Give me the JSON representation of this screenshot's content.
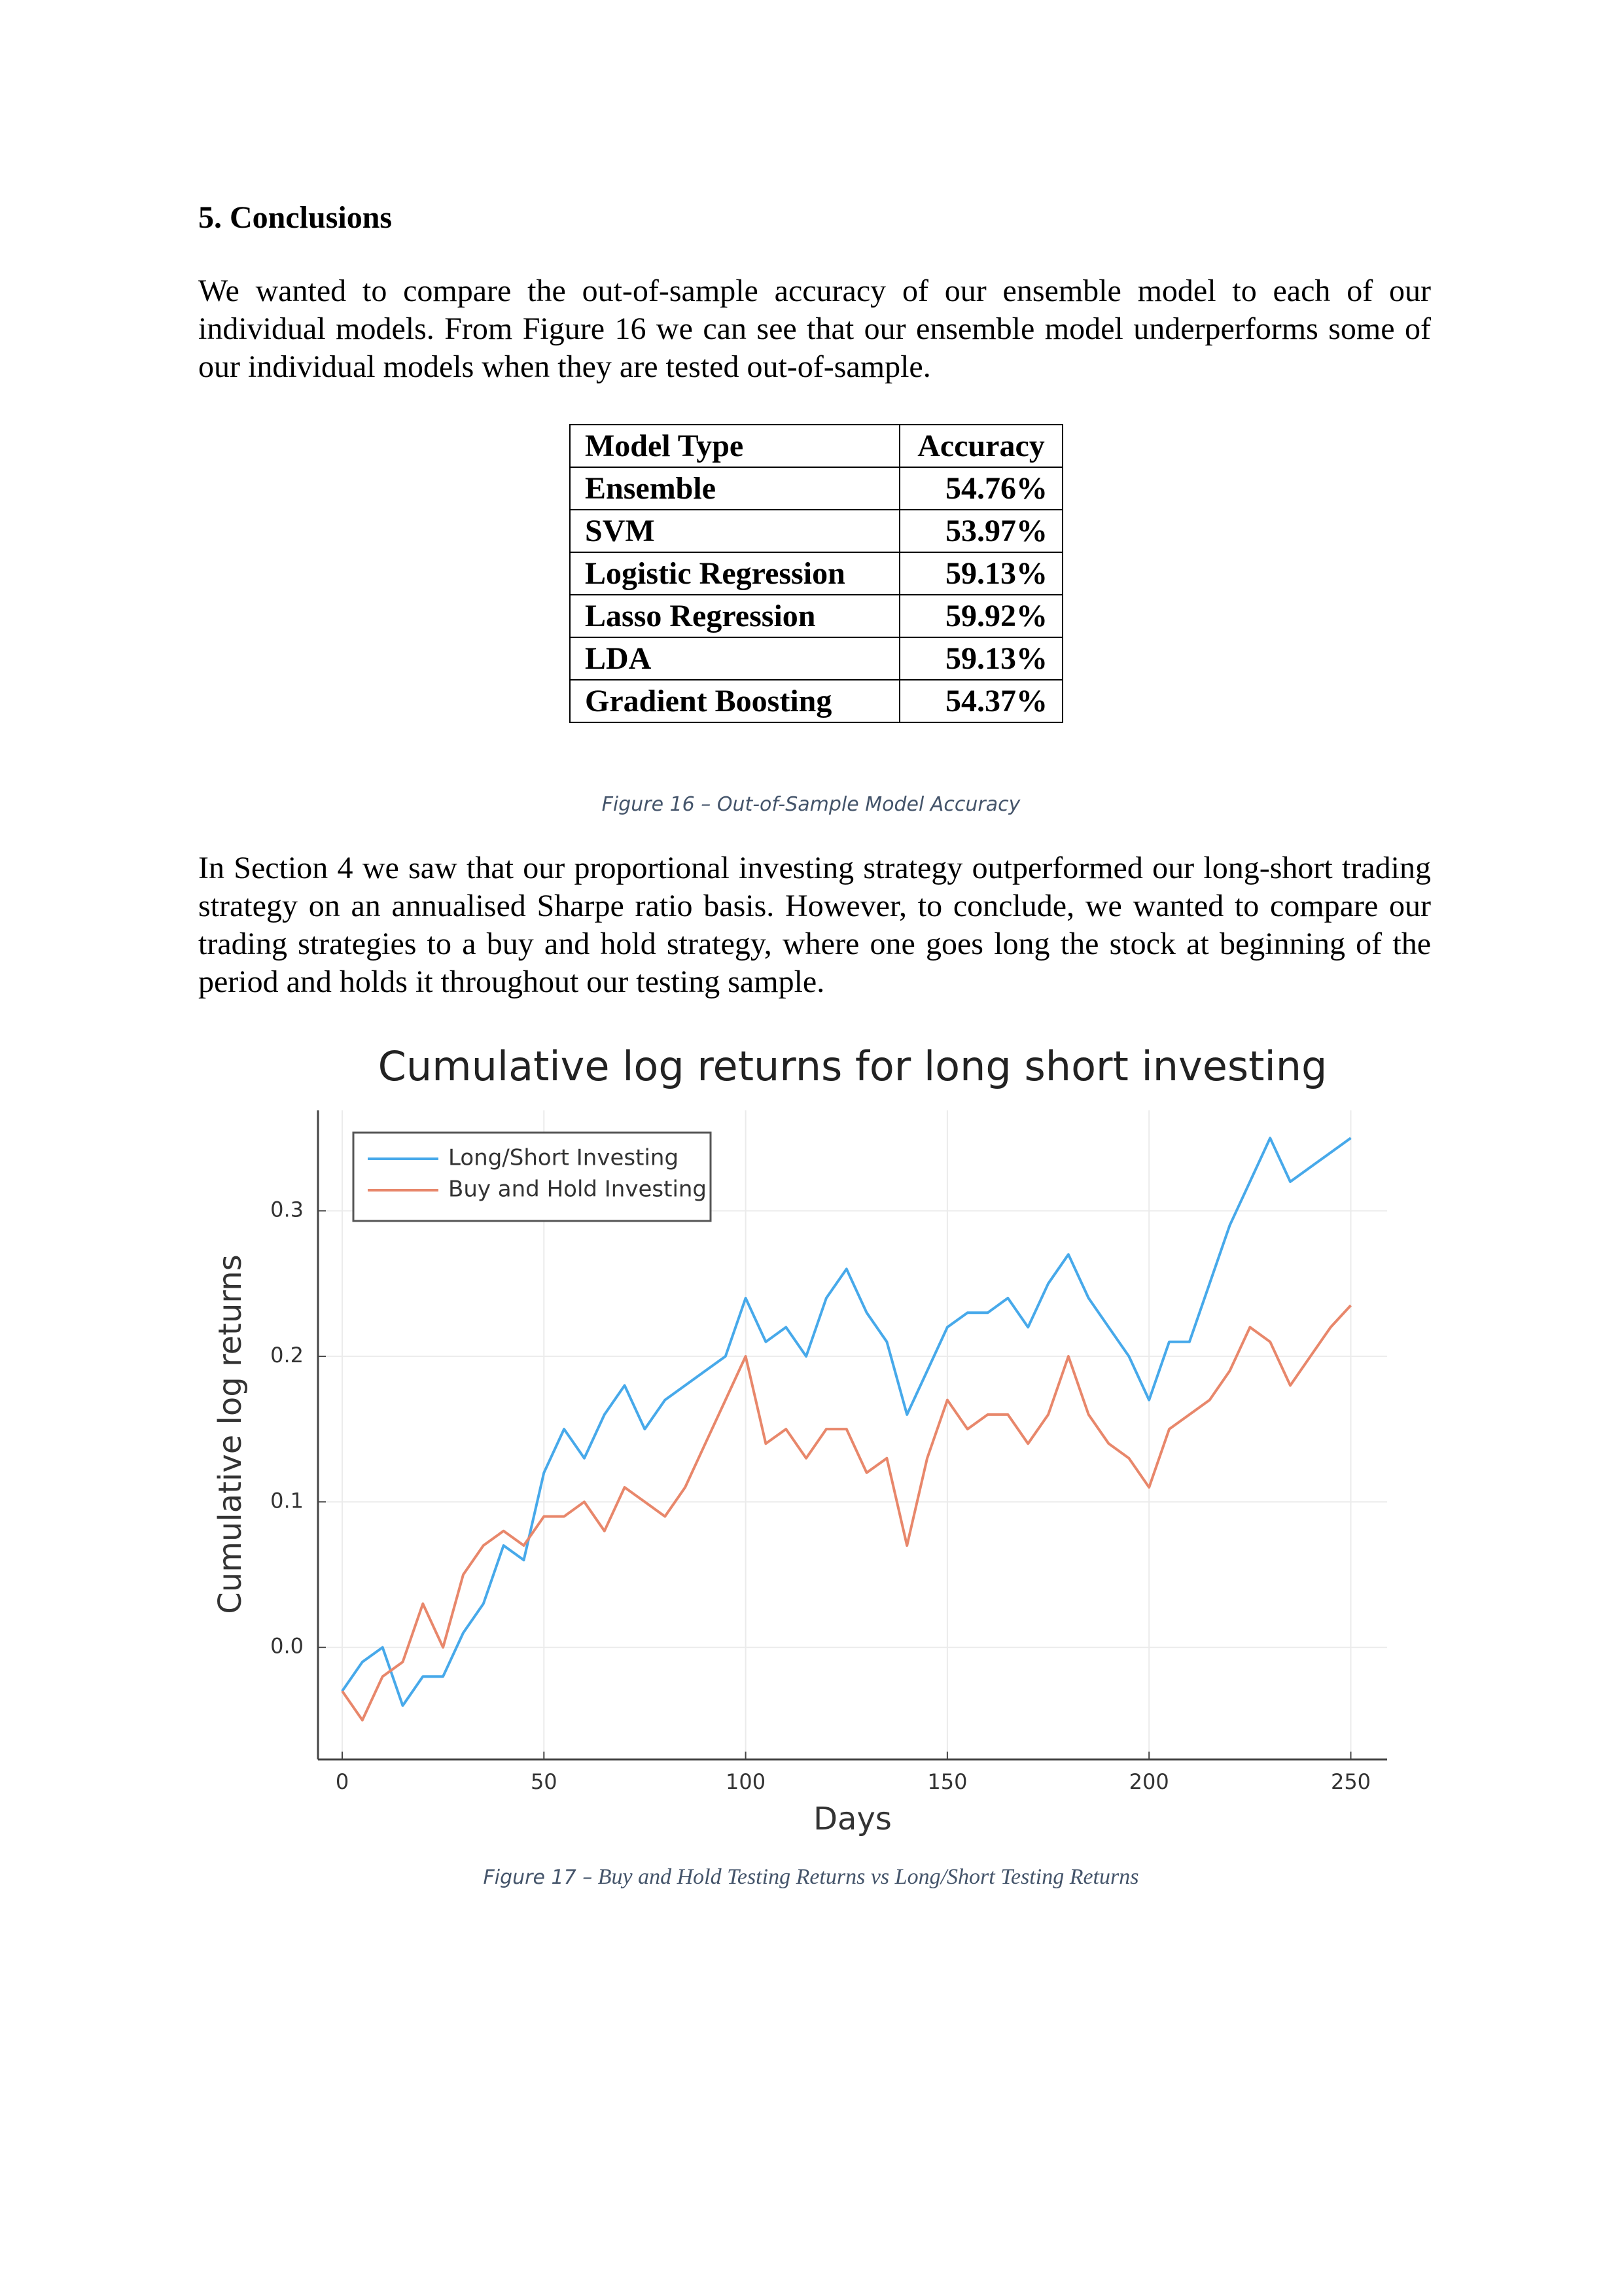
{
  "heading": "5. Conclusions",
  "paragraphs": [
    "We wanted to compare the out-of-sample accuracy of our ensemble model to each of our individual models. From Figure 16 we can see that our ensemble model underperforms some of our individual models when they are tested out-of-sample.",
    "In Section 4 we saw that our proportional investing strategy outperformed our long-short trading strategy on an annualised Sharpe ratio basis. However, to conclude, we wanted to compare our trading strategies to a buy and hold strategy, where one goes long the stock at beginning of the period and holds it throughout our testing sample."
  ],
  "table": {
    "header": [
      "Model Type",
      "Accuracy"
    ],
    "rows": [
      [
        "Ensemble",
        "54.76%"
      ],
      [
        "SVM",
        "53.97%"
      ],
      [
        "Logistic Regression",
        "59.13%"
      ],
      [
        "Lasso Regression",
        "59.92%"
      ],
      [
        "LDA",
        "59.13%"
      ],
      [
        "Gradient Boosting",
        "54.37%"
      ]
    ]
  },
  "figure16_caption": "Figure 16 – Out-of-Sample Model Accuracy",
  "figure17_caption": {
    "label": "Figure 17 –",
    "text": "Buy and Hold Testing Returns vs Long/Short Testing Returns"
  },
  "chart_data": {
    "type": "line",
    "title": "Cumulative log returns for long short investing",
    "x_label": "Days",
    "y_label": "Cumulative log returns",
    "x": [
      0,
      5,
      10,
      15,
      20,
      25,
      30,
      35,
      40,
      45,
      50,
      55,
      60,
      65,
      70,
      75,
      80,
      85,
      90,
      95,
      100,
      105,
      110,
      115,
      120,
      125,
      130,
      135,
      140,
      145,
      150,
      155,
      160,
      165,
      170,
      175,
      180,
      185,
      190,
      195,
      200,
      205,
      210,
      215,
      220,
      225,
      230,
      235,
      240,
      245,
      250
    ],
    "series": [
      {
        "name": "Long/Short Investing",
        "color": "#47a9ea",
        "values": [
          -0.03,
          -0.01,
          0.0,
          -0.04,
          -0.02,
          -0.02,
          0.01,
          0.03,
          0.07,
          0.06,
          0.12,
          0.15,
          0.13,
          0.16,
          0.18,
          0.15,
          0.17,
          0.18,
          0.19,
          0.2,
          0.24,
          0.21,
          0.22,
          0.2,
          0.24,
          0.26,
          0.23,
          0.21,
          0.16,
          0.19,
          0.22,
          0.23,
          0.23,
          0.24,
          0.22,
          0.25,
          0.27,
          0.24,
          0.22,
          0.2,
          0.17,
          0.21,
          0.21,
          0.25,
          0.29,
          0.32,
          0.35,
          0.32,
          0.33,
          0.34,
          0.35
        ]
      },
      {
        "name": "Buy and Hold Investing",
        "color": "#e8876b",
        "values": [
          -0.03,
          -0.05,
          -0.02,
          -0.01,
          0.03,
          0.0,
          0.05,
          0.07,
          0.08,
          0.07,
          0.09,
          0.09,
          0.1,
          0.08,
          0.11,
          0.1,
          0.09,
          0.11,
          0.14,
          0.17,
          0.2,
          0.14,
          0.15,
          0.13,
          0.15,
          0.15,
          0.12,
          0.13,
          0.07,
          0.13,
          0.17,
          0.15,
          0.16,
          0.16,
          0.14,
          0.16,
          0.2,
          0.16,
          0.14,
          0.13,
          0.11,
          0.15,
          0.16,
          0.17,
          0.19,
          0.22,
          0.21,
          0.18,
          0.2,
          0.22,
          0.235
        ]
      }
    ],
    "xlim": [
      -6,
      259
    ],
    "ylim": [
      -0.077,
      0.369
    ],
    "xticks": [
      0,
      50,
      100,
      150,
      200,
      250
    ],
    "yticks": [
      {
        "value": 0,
        "label": "0.0"
      },
      0.1,
      0.2,
      0.3
    ],
    "grid": true,
    "legend": "top-left"
  }
}
